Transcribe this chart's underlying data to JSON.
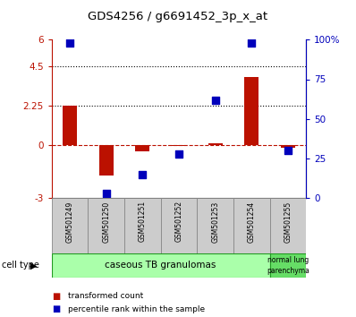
{
  "title": "GDS4256 / g6691452_3p_x_at",
  "samples": [
    "GSM501249",
    "GSM501250",
    "GSM501251",
    "GSM501252",
    "GSM501253",
    "GSM501254",
    "GSM501255"
  ],
  "transformed_count": [
    2.25,
    -1.7,
    -0.35,
    -0.05,
    0.1,
    3.9,
    -0.15
  ],
  "percentile_rank": [
    98,
    3,
    15,
    28,
    62,
    98,
    30
  ],
  "ylim_left": [
    -3,
    6
  ],
  "ylim_right": [
    0,
    100
  ],
  "yticks_left": [
    -3,
    0,
    2.25,
    4.5,
    6
  ],
  "ytick_labels_left": [
    "-3",
    "0",
    "2.25",
    "4.5",
    "6"
  ],
  "yticks_right": [
    0,
    25,
    50,
    75,
    100
  ],
  "ytick_labels_right": [
    "0",
    "25",
    "50",
    "75",
    "100%"
  ],
  "hlines": [
    4.5,
    2.25
  ],
  "bar_color": "#bb1100",
  "dot_color": "#0000bb",
  "ct1_color": "#aaffaa",
  "ct2_color": "#66dd66",
  "ct_edge_color": "#229922",
  "legend_bar_label": "transformed count",
  "legend_dot_label": "percentile rank within the sample",
  "cell_type_label": "cell type",
  "background_color": "#ffffff",
  "bar_width": 0.4,
  "dot_size": 30
}
